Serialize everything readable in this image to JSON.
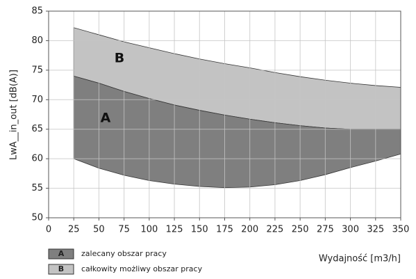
{
  "chart_data": {
    "type": "area",
    "ylabel": "LwA__in_out [dB(A)]",
    "xlabel": "Wydajność [m3/h]",
    "x": [
      25,
      50,
      75,
      100,
      125,
      150,
      175,
      200,
      225,
      250,
      275,
      300,
      325,
      350
    ],
    "series": [
      {
        "name": "zalecany obszar pracy",
        "label": "A",
        "color": "#7f7f7f",
        "low": [
          60,
          58.4,
          57.2,
          56.3,
          55.7,
          55.3,
          55.1,
          55.2,
          55.6,
          56.3,
          57.3,
          58.5,
          59.6,
          60.8
        ],
        "values": [
          74,
          72.8,
          71.4,
          70.2,
          69.1,
          68.2,
          67.4,
          66.7,
          66.1,
          65.6,
          65.2,
          65,
          65,
          65
        ]
      },
      {
        "name": "całkowity możliwy obszar pracy",
        "label": "B",
        "color": "#c3c3c3",
        "values": [
          82.2,
          81,
          79.8,
          78.8,
          77.8,
          76.9,
          76.1,
          75.4,
          74.6,
          73.9,
          73.3,
          72.8,
          72.4,
          72.1
        ]
      }
    ],
    "xlim": [
      0,
      350
    ],
    "xticks": [
      0,
      25,
      50,
      75,
      100,
      125,
      150,
      175,
      200,
      225,
      250,
      275,
      300,
      325,
      350
    ],
    "ylim": [
      50,
      85
    ],
    "yticks": [
      50,
      55,
      60,
      65,
      70,
      75,
      80,
      85
    ],
    "grid": true
  }
}
